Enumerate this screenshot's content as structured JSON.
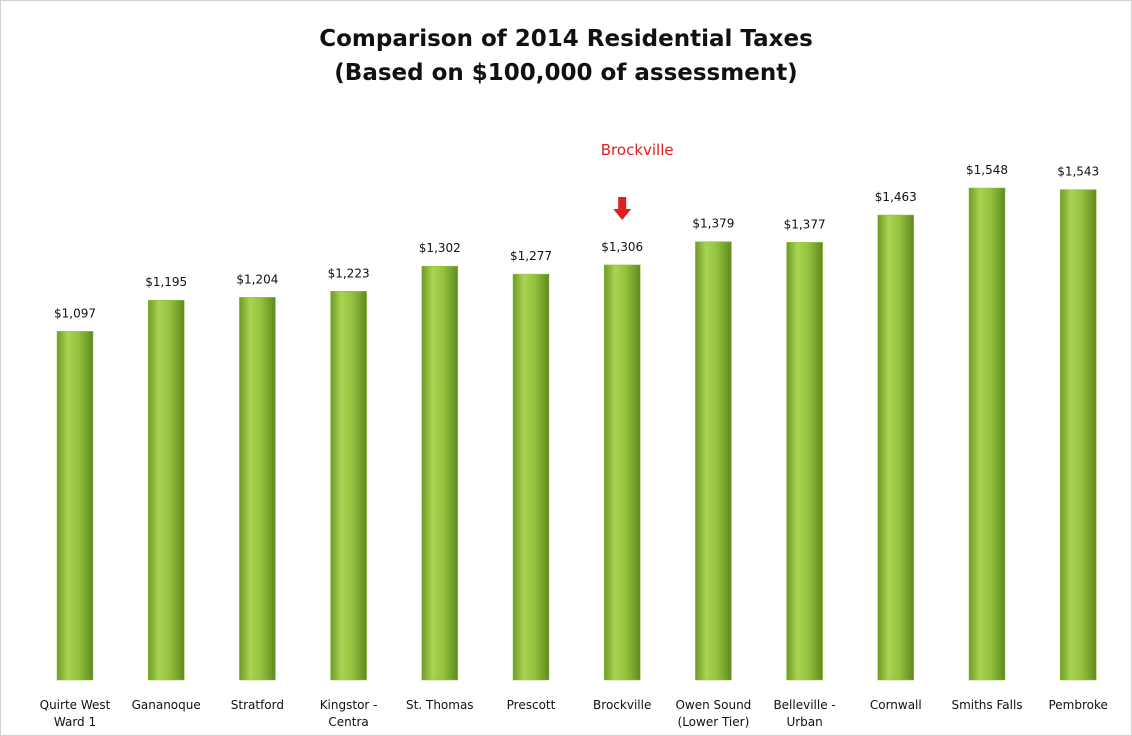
{
  "chart_data": {
    "type": "bar",
    "title": "Comparison  of 2014 Residential Taxes\n(Based on $100,000 of assessment)",
    "categories": [
      "Quirte West\nWard 1",
      "Gananoque",
      "Stratford",
      "Kingstor -\nCentra",
      "St. Thomas",
      "Prescott",
      "Brockville",
      "Owen Sound\n(Lower Tier)",
      "Belleville -\nUrban",
      "Cornwall",
      "Smiths Falls",
      "Pembroke"
    ],
    "values": [
      1097,
      1195,
      1204,
      1223,
      1302,
      1277,
      1306,
      1379,
      1377,
      1463,
      1548,
      1543
    ],
    "value_labels": [
      "$1,097",
      "$1,195",
      "$1,204",
      "$1,223",
      "$1,302",
      "$1,277",
      "$1,306",
      "$1,379",
      "$1,377",
      "$1,463",
      "$1,548",
      "$1,543"
    ],
    "color": "#8dbf3a",
    "annotation": "Brockville",
    "annotation_color": "#e02020"
  }
}
